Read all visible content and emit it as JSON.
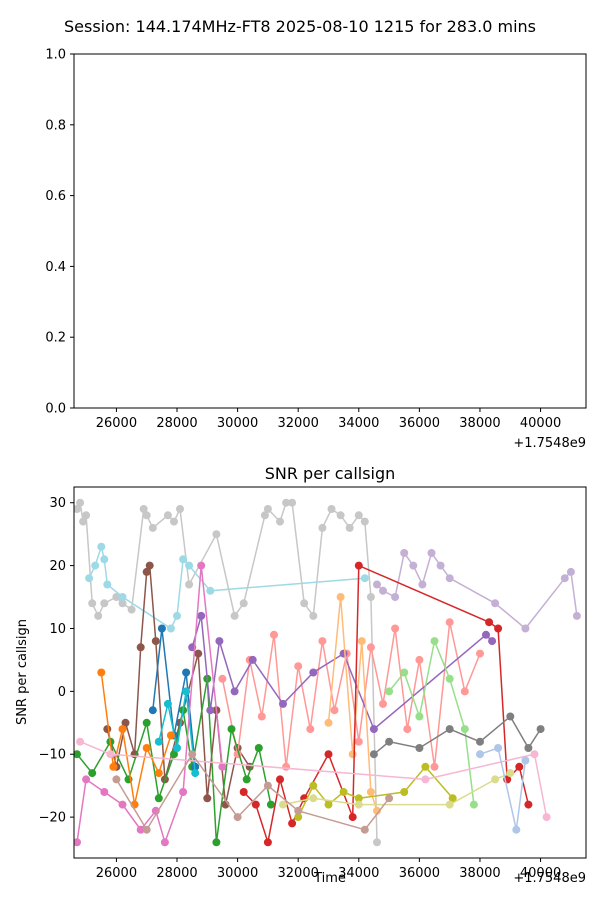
{
  "figure": {
    "suptitle": "Session: 144.174MHz-FT8 2025-08-10 1215 for 283.0 mins"
  },
  "chart_data": [
    {
      "type": "line",
      "title": "",
      "xlabel": "",
      "ylabel": "",
      "xlim": [
        24600,
        41500
      ],
      "ylim": [
        0.0,
        1.0
      ],
      "x_offset_label": "+1.7548e9",
      "x_ticks": [
        26000,
        28000,
        30000,
        32000,
        34000,
        36000,
        38000,
        40000
      ],
      "x_tick_labels": [
        "26000",
        "28000",
        "30000",
        "32000",
        "34000",
        "36000",
        "38000",
        "40000"
      ],
      "y_ticks": [
        0.0,
        0.2,
        0.4,
        0.6,
        0.8,
        1.0
      ],
      "y_tick_labels": [
        "0.0",
        "0.2",
        "0.4",
        "0.6",
        "0.8",
        "1.0"
      ],
      "grid": false,
      "series": []
    },
    {
      "type": "line",
      "title": "SNR per callsign",
      "xlabel": "Time",
      "ylabel": "SNR per callsign",
      "xlim": [
        24600,
        41500
      ],
      "ylim": [
        -26.5,
        32.5
      ],
      "x_offset_label": "+1.7548e9",
      "x_ticks": [
        26000,
        28000,
        30000,
        32000,
        34000,
        36000,
        38000,
        40000
      ],
      "x_tick_labels": [
        "26000",
        "28000",
        "30000",
        "32000",
        "34000",
        "36000",
        "38000",
        "40000"
      ],
      "y_ticks": [
        -20,
        -10,
        0,
        10,
        20,
        30
      ],
      "y_tick_labels": [
        "−20",
        "−10",
        "0",
        "10",
        "20",
        "30"
      ],
      "grid": false,
      "series": [
        {
          "color": "#c7c7c7",
          "x": [
            24700,
            24800,
            24900,
            25000,
            25200,
            25400,
            25600,
            26000,
            26200,
            26500,
            26900,
            27000,
            27200,
            27700,
            27900,
            28100,
            28400,
            29300,
            29900,
            30200,
            30900,
            31000,
            31400,
            31600,
            31800,
            32200,
            32500,
            32800,
            33100,
            33400,
            33700,
            34000,
            34200,
            34400,
            34600
          ],
          "y": [
            29,
            30,
            27,
            28,
            14,
            12,
            14,
            15,
            14,
            13,
            29,
            28,
            26,
            28,
            27,
            29,
            17,
            25,
            12,
            14,
            28,
            29,
            27,
            30,
            30,
            14,
            12,
            26,
            29,
            28,
            26,
            28,
            27,
            15,
            -24
          ]
        },
        {
          "color": "#c5b0d5",
          "x": [
            34600,
            34800,
            35200,
            35500,
            35800,
            36100,
            36400,
            36700,
            37000,
            38500,
            39500,
            40800,
            41000,
            41200
          ],
          "y": [
            17,
            16,
            15,
            22,
            20,
            17,
            22,
            20,
            18,
            14,
            10,
            18,
            19,
            12
          ]
        },
        {
          "color": "#9edae5",
          "x": [
            25100,
            25300,
            25500,
            25600,
            25700,
            26200,
            27800,
            28000,
            28200,
            28400,
            29100,
            34200
          ],
          "y": [
            18,
            20,
            23,
            21,
            17,
            15,
            10,
            12,
            21,
            20,
            16,
            18
          ]
        },
        {
          "color": "#8c564b",
          "x": [
            25700,
            26000,
            26300,
            26600,
            26800,
            27000,
            27100,
            27300,
            27600,
            28100,
            28700,
            29000,
            29300,
            29600,
            30000,
            30400
          ],
          "y": [
            -6,
            -12,
            -5,
            -10,
            7,
            19,
            20,
            8,
            -14,
            -5,
            6,
            -17,
            -3,
            -18,
            -9,
            -12
          ]
        },
        {
          "color": "#ff9896",
          "x": [
            29500,
            30000,
            30400,
            30800,
            31200,
            31600,
            32000,
            32400,
            32800,
            33200,
            33600,
            34000,
            34400,
            34800,
            35200,
            35600,
            36000,
            36500,
            37000,
            37500,
            38000
          ],
          "y": [
            2,
            -10,
            5,
            -4,
            9,
            -12,
            4,
            -6,
            8,
            -3,
            6,
            -8,
            7,
            -2,
            10,
            -6,
            5,
            -12,
            11,
            0,
            6
          ]
        },
        {
          "color": "#2ca02c",
          "x": [
            24700,
            25200,
            25800,
            26400,
            27000,
            27400,
            27900,
            28200,
            28500,
            29000,
            29300,
            29800,
            30300,
            30700,
            31100
          ],
          "y": [
            -10,
            -13,
            -8,
            -14,
            -5,
            -17,
            -10,
            -3,
            -12,
            2,
            -24,
            -6,
            -14,
            -9,
            -18
          ]
        },
        {
          "color": "#1f77b4",
          "x": [
            27200,
            27500,
            27900,
            28300,
            28600
          ],
          "y": [
            -3,
            10,
            -7,
            3,
            -12
          ]
        },
        {
          "color": "#17becf",
          "x": [
            27400,
            27700,
            28000,
            28300,
            28600
          ],
          "y": [
            -8,
            -2,
            -9,
            0,
            -13
          ]
        },
        {
          "color": "#9467bd",
          "x": [
            28500,
            28800,
            29100,
            29400,
            29900,
            30500,
            31500,
            32500,
            33500,
            34500,
            38200,
            38400
          ],
          "y": [
            7,
            12,
            -3,
            8,
            0,
            5,
            -2,
            3,
            6,
            -6,
            9,
            8
          ]
        },
        {
          "color": "#e377c2",
          "x": [
            24700,
            25000,
            25600,
            26200,
            26800,
            27300,
            27600,
            28200,
            28800,
            29500
          ],
          "y": [
            -24,
            -14,
            -16,
            -18,
            -22,
            -19,
            -24,
            -16,
            20,
            -12
          ]
        },
        {
          "color": "#ff7f0e",
          "x": [
            25500,
            25900,
            26200,
            26600,
            27000,
            27400,
            27800
          ],
          "y": [
            3,
            -12,
            -6,
            -18,
            -9,
            -13,
            -7
          ]
        },
        {
          "color": "#ffbb78",
          "x": [
            33000,
            33400,
            33800,
            34100,
            34400,
            34600
          ],
          "y": [
            -5,
            15,
            -10,
            8,
            -16,
            -19
          ]
        },
        {
          "color": "#d62728",
          "x": [
            30200,
            30600,
            31000,
            31400,
            31800,
            32200,
            33000,
            33800,
            34000,
            38300,
            38600,
            38900,
            39300,
            39600
          ],
          "y": [
            -16,
            -18,
            -24,
            -14,
            -21,
            -17,
            -10,
            -20,
            20,
            11,
            10,
            -14,
            -12,
            -18
          ]
        },
        {
          "color": "#98df8a",
          "x": [
            35000,
            35500,
            36000,
            36500,
            37000,
            37500,
            37800
          ],
          "y": [
            0,
            3,
            -4,
            8,
            2,
            -6,
            -18
          ]
        },
        {
          "color": "#bcbd22",
          "x": [
            32000,
            32500,
            33000,
            33500,
            34000,
            35500,
            36200,
            37100
          ],
          "y": [
            -20,
            -15,
            -18,
            -16,
            -17,
            -16,
            -12,
            -17
          ]
        },
        {
          "color": "#dbdb8d",
          "x": [
            31500,
            32500,
            34000,
            37000,
            38500,
            39000
          ],
          "y": [
            -18,
            -17,
            -18,
            -18,
            -14,
            -13
          ]
        },
        {
          "color": "#f7b6d2",
          "x": [
            24800,
            25800,
            36200,
            39800,
            40200
          ],
          "y": [
            -8,
            -10,
            -14,
            -10,
            -20
          ]
        },
        {
          "color": "#7f7f7f",
          "x": [
            34500,
            35000,
            36000,
            37000,
            38000,
            39000,
            39600,
            40000
          ],
          "y": [
            -10,
            -8,
            -9,
            -6,
            -8,
            -4,
            -9,
            -6
          ]
        },
        {
          "color": "#aec7e8",
          "x": [
            38000,
            38600,
            39200,
            39500
          ],
          "y": [
            -10,
            -9,
            -22,
            -11
          ]
        },
        {
          "color": "#c49c94",
          "x": [
            26000,
            27000,
            28500,
            30000,
            31000,
            32000,
            34200,
            35000
          ],
          "y": [
            -14,
            -22,
            -10,
            -20,
            -15,
            -19,
            -22,
            -17
          ]
        }
      ]
    }
  ]
}
